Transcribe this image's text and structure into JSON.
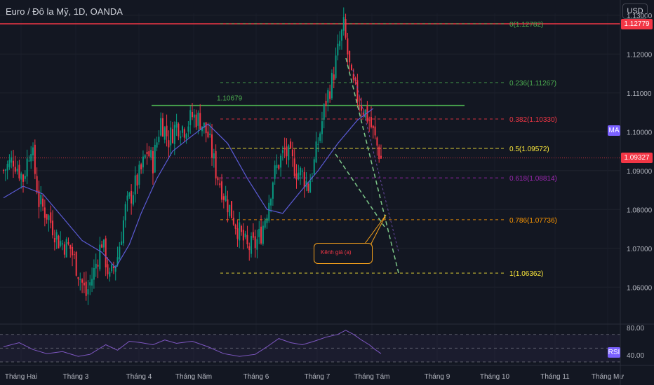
{
  "header": {
    "symbol_title": "Euro / Đô la Mỹ, 1D, OANDA",
    "currency_button": "USD"
  },
  "indicators": {
    "ma_label": "MA",
    "rsi_label": "RSI"
  },
  "price_tags": {
    "resistance": "1.12779",
    "current": "1.09327"
  },
  "callout_text": "Kênh giá (a)",
  "colors": {
    "background": "#131722",
    "up_candle": "#089981",
    "down_candle": "#f23645",
    "ma_line": "#5b5bd6",
    "resistance_line": "#f23645",
    "green_level": "#4caf50",
    "rsi_line": "#7e57c2",
    "channel": "#7ec98a"
  },
  "chart_data": [
    {
      "type": "candlestick",
      "title": "Euro / Đô la Mỹ, 1D, OANDA",
      "ylim": [
        1.0505,
        1.1305
      ],
      "y_ticks": [
        1.06,
        1.07,
        1.08,
        1.09,
        1.1,
        1.11,
        1.12,
        1.13
      ],
      "y_tick_labels": [
        "1.06000",
        "1.07000",
        "1.08000",
        "1.09000",
        "1.10000",
        "1.11000",
        "1.12000",
        "1.13000"
      ],
      "x_tick_labels": [
        "Tháng Hai",
        "Tháng 3",
        "Tháng 4",
        "Tháng Năm",
        "Tháng 6",
        "Tháng 7",
        "Tháng Tám",
        "Tháng 9",
        "Tháng 10",
        "Tháng 11",
        "Tháng Mư"
      ],
      "price_path": [
        {
          "day": 0,
          "price": 1.09
        },
        {
          "day": 5,
          "price": 1.093
        },
        {
          "day": 10,
          "price": 1.088
        },
        {
          "day": 14,
          "price": 1.097
        },
        {
          "day": 18,
          "price": 1.082
        },
        {
          "day": 23,
          "price": 1.078
        },
        {
          "day": 28,
          "price": 1.072
        },
        {
          "day": 34,
          "price": 1.07
        },
        {
          "day": 38,
          "price": 1.064
        },
        {
          "day": 42,
          "price": 1.058
        },
        {
          "day": 46,
          "price": 1.064
        },
        {
          "day": 50,
          "price": 1.072
        },
        {
          "day": 54,
          "price": 1.062
        },
        {
          "day": 58,
          "price": 1.068
        },
        {
          "day": 62,
          "price": 1.08
        },
        {
          "day": 66,
          "price": 1.085
        },
        {
          "day": 70,
          "price": 1.09
        },
        {
          "day": 73,
          "price": 1.095
        },
        {
          "day": 76,
          "price": 1.092
        },
        {
          "day": 80,
          "price": 1.103
        },
        {
          "day": 84,
          "price": 1.098
        },
        {
          "day": 88,
          "price": 1.102
        },
        {
          "day": 92,
          "price": 1.101
        },
        {
          "day": 96,
          "price": 1.104
        },
        {
          "day": 100,
          "price": 1.103
        },
        {
          "day": 104,
          "price": 1.099
        },
        {
          "day": 108,
          "price": 1.09
        },
        {
          "day": 112,
          "price": 1.084
        },
        {
          "day": 116,
          "price": 1.079
        },
        {
          "day": 120,
          "price": 1.074
        },
        {
          "day": 124,
          "price": 1.07
        },
        {
          "day": 128,
          "price": 1.071
        },
        {
          "day": 131,
          "price": 1.074
        },
        {
          "day": 134,
          "price": 1.08
        },
        {
          "day": 137,
          "price": 1.088
        },
        {
          "day": 140,
          "price": 1.092
        },
        {
          "day": 143,
          "price": 1.095
        },
        {
          "day": 146,
          "price": 1.093
        },
        {
          "day": 149,
          "price": 1.09
        },
        {
          "day": 152,
          "price": 1.089
        },
        {
          "day": 155,
          "price": 1.086
        },
        {
          "day": 158,
          "price": 1.092
        },
        {
          "day": 161,
          "price": 1.1
        },
        {
          "day": 164,
          "price": 1.108
        },
        {
          "day": 167,
          "price": 1.113
        },
        {
          "day": 169,
          "price": 1.118
        },
        {
          "day": 171,
          "price": 1.123
        },
        {
          "day": 173,
          "price": 1.127
        },
        {
          "day": 175,
          "price": 1.12
        },
        {
          "day": 177,
          "price": 1.113
        },
        {
          "day": 180,
          "price": 1.109
        },
        {
          "day": 183,
          "price": 1.106
        },
        {
          "day": 186,
          "price": 1.103
        },
        {
          "day": 189,
          "price": 1.098
        },
        {
          "day": 192,
          "price": 1.093
        }
      ],
      "moving_average": [
        {
          "day": 0,
          "value": 1.083
        },
        {
          "day": 10,
          "value": 1.086
        },
        {
          "day": 20,
          "value": 1.084
        },
        {
          "day": 30,
          "value": 1.078
        },
        {
          "day": 40,
          "value": 1.072
        },
        {
          "day": 50,
          "value": 1.069
        },
        {
          "day": 57,
          "value": 1.065
        },
        {
          "day": 64,
          "value": 1.071
        },
        {
          "day": 70,
          "value": 1.079
        },
        {
          "day": 78,
          "value": 1.088
        },
        {
          "day": 86,
          "value": 1.095
        },
        {
          "day": 96,
          "value": 1.099
        },
        {
          "day": 104,
          "value": 1.102
        },
        {
          "day": 114,
          "value": 1.097
        },
        {
          "day": 124,
          "value": 1.088
        },
        {
          "day": 134,
          "value": 1.08
        },
        {
          "day": 142,
          "value": 1.079
        },
        {
          "day": 150,
          "value": 1.084
        },
        {
          "day": 160,
          "value": 1.09
        },
        {
          "day": 170,
          "value": 1.097
        },
        {
          "day": 180,
          "value": 1.103
        },
        {
          "day": 188,
          "value": 1.106
        }
      ],
      "last_price": 1.09327,
      "resistance_level": 1.12779,
      "horizontal_level": {
        "label": "1.10679",
        "value": 1.10679
      },
      "fibonacci_levels": [
        {
          "label": "0(1.12782)",
          "value": 1.12782,
          "color": "#4caf50"
        },
        {
          "label": "0.236(1.11267)",
          "value": 1.11267,
          "color": "#4caf50"
        },
        {
          "label": "0.382(1.10330)",
          "value": 1.1033,
          "color": "#f23645"
        },
        {
          "label": "0.5(1.09572)",
          "value": 1.09572,
          "color": "#ffeb3b"
        },
        {
          "label": "0.618(1.08814)",
          "value": 1.08814,
          "color": "#9c27b0"
        },
        {
          "label": "0.786(1.07736)",
          "value": 1.07736,
          "color": "#ff9800"
        },
        {
          "label": "1(1.06362)",
          "value": 1.06362,
          "color": "#ffeb3b"
        }
      ],
      "annotation": "Kênh giá (a)"
    },
    {
      "type": "line",
      "title": "RSI",
      "ylim": [
        30,
        85
      ],
      "y_ticks": [
        40,
        80
      ],
      "y_tick_labels": [
        "40.00",
        "80.00"
      ],
      "bands": [
        70,
        50,
        30
      ],
      "points": [
        {
          "day": 0,
          "value": 52
        },
        {
          "day": 8,
          "value": 58
        },
        {
          "day": 15,
          "value": 48
        },
        {
          "day": 22,
          "value": 42
        },
        {
          "day": 30,
          "value": 45
        },
        {
          "day": 38,
          "value": 38
        },
        {
          "day": 44,
          "value": 41
        },
        {
          "day": 52,
          "value": 55
        },
        {
          "day": 58,
          "value": 47
        },
        {
          "day": 64,
          "value": 60
        },
        {
          "day": 70,
          "value": 58
        },
        {
          "day": 76,
          "value": 55
        },
        {
          "day": 82,
          "value": 62
        },
        {
          "day": 88,
          "value": 57
        },
        {
          "day": 96,
          "value": 60
        },
        {
          "day": 104,
          "value": 52
        },
        {
          "day": 112,
          "value": 42
        },
        {
          "day": 120,
          "value": 38
        },
        {
          "day": 128,
          "value": 41
        },
        {
          "day": 134,
          "value": 52
        },
        {
          "day": 140,
          "value": 64
        },
        {
          "day": 146,
          "value": 58
        },
        {
          "day": 152,
          "value": 55
        },
        {
          "day": 158,
          "value": 60
        },
        {
          "day": 164,
          "value": 66
        },
        {
          "day": 170,
          "value": 70
        },
        {
          "day": 174,
          "value": 76
        },
        {
          "day": 178,
          "value": 70
        },
        {
          "day": 182,
          "value": 62
        },
        {
          "day": 186,
          "value": 55
        },
        {
          "day": 189,
          "value": 48
        },
        {
          "day": 192,
          "value": 42
        }
      ]
    }
  ]
}
